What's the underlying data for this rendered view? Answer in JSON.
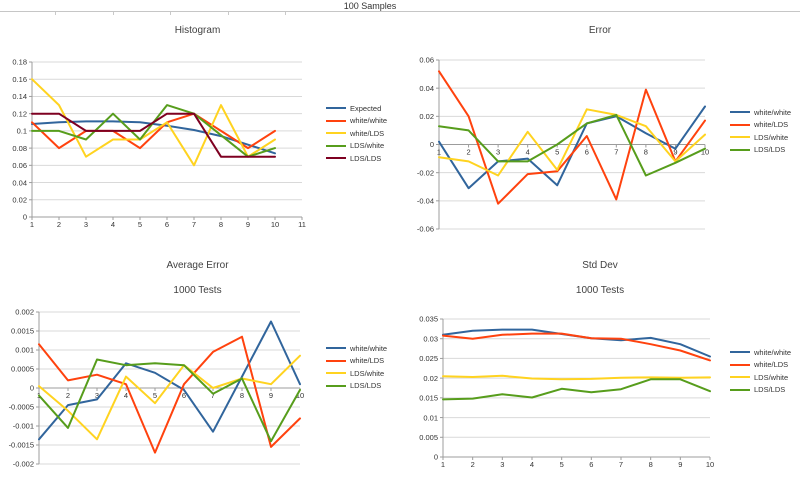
{
  "header": {
    "title": "100 Samples"
  },
  "palette": {
    "blue": "#31659C",
    "orange": "#FF420E",
    "yellow": "#FFD320",
    "green": "#579D1C",
    "maroon": "#7E0021",
    "grid": "#D9D9D9",
    "axis": "#9C9C9C",
    "text": "#333333"
  },
  "chart_data": [
    {
      "type": "line",
      "title": "Histogram",
      "subtitle": "",
      "xticks": [
        "1",
        "2",
        "3",
        "4",
        "5",
        "6",
        "7",
        "8",
        "9",
        "10",
        "11"
      ],
      "ylim": [
        0,
        0.18
      ],
      "yticks": [
        "0.18",
        "0.16",
        "0.14",
        "0.12",
        "0.1",
        "0.08",
        "0.06",
        "0.04",
        "0.02",
        "0"
      ],
      "grid": true,
      "legend_position": "right",
      "series": [
        {
          "name": "Expected",
          "color": "blue",
          "values": [
            0.108,
            0.11,
            0.111,
            0.111,
            0.11,
            0.106,
            0.101,
            0.094,
            0.084,
            0.074
          ]
        },
        {
          "name": "white/white",
          "color": "orange",
          "values": [
            0.11,
            0.08,
            0.1,
            0.1,
            0.08,
            0.11,
            0.12,
            0.1,
            0.08,
            0.1
          ]
        },
        {
          "name": "white/LDS",
          "color": "yellow",
          "values": [
            0.16,
            0.13,
            0.07,
            0.09,
            0.09,
            0.11,
            0.06,
            0.13,
            0.07,
            0.09
          ]
        },
        {
          "name": "LDS/white",
          "color": "green",
          "values": [
            0.1,
            0.1,
            0.09,
            0.12,
            0.09,
            0.13,
            0.12,
            0.095,
            0.07,
            0.08
          ]
        },
        {
          "name": "LDS/LDS",
          "color": "maroon",
          "values": [
            0.12,
            0.12,
            0.1,
            0.1,
            0.1,
            0.12,
            0.12,
            0.07,
            0.07,
            0.07
          ]
        }
      ]
    },
    {
      "type": "line",
      "title": "Error",
      "subtitle": "",
      "xticks": [
        "1",
        "2",
        "3",
        "4",
        "5",
        "6",
        "7",
        "8",
        "9",
        "10"
      ],
      "ylim": [
        -0.06,
        0.06
      ],
      "yticks": [
        "0.06",
        "0.04",
        "0.02",
        "0",
        "-0.02",
        "-0.04",
        "-0.06"
      ],
      "grid": true,
      "legend_position": "right",
      "series": [
        {
          "name": "white/white",
          "color": "blue",
          "values": [
            0.002,
            -0.031,
            -0.012,
            -0.01,
            -0.029,
            0.015,
            0.02,
            0.008,
            -0.003,
            0.027
          ]
        },
        {
          "name": "white/LDS",
          "color": "orange",
          "values": [
            0.052,
            0.02,
            -0.042,
            -0.021,
            -0.019,
            0.006,
            -0.039,
            0.039,
            -0.012,
            0.017
          ]
        },
        {
          "name": "LDS/white",
          "color": "yellow",
          "values": [
            -0.009,
            -0.012,
            -0.022,
            0.009,
            -0.018,
            0.025,
            0.021,
            0.013,
            -0.012,
            0.007
          ]
        },
        {
          "name": "LDS/LDS",
          "color": "green",
          "values": [
            0.013,
            0.01,
            -0.012,
            -0.012,
            0.0,
            0.015,
            0.021,
            -0.022,
            -0.013,
            -0.003
          ]
        }
      ]
    },
    {
      "type": "line",
      "title": "Average Error",
      "subtitle": "1000 Tests",
      "xticks": [
        "1",
        "2",
        "3",
        "4",
        "5",
        "6",
        "7",
        "8",
        "9",
        "10"
      ],
      "ylim": [
        -0.002,
        0.002
      ],
      "yticks": [
        "0.002",
        "0.0015",
        "0.001",
        "0.0005",
        "0",
        "-0.0005",
        "-0.001",
        "-0.0015",
        "-0.002"
      ],
      "grid": true,
      "legend_position": "right",
      "series": [
        {
          "name": "white/white",
          "color": "blue",
          "values": [
            -0.00135,
            -0.00045,
            -0.0003,
            0.00065,
            0.0004,
            -5e-05,
            -0.00115,
            0.0003,
            0.00175,
            0.0001
          ]
        },
        {
          "name": "white/LDS",
          "color": "orange",
          "values": [
            0.00115,
            0.0002,
            0.00035,
            0.0001,
            -0.0017,
            0.0001,
            0.00095,
            0.00135,
            -0.00155,
            -0.0008
          ]
        },
        {
          "name": "LDS/white",
          "color": "yellow",
          "values": [
            5e-05,
            -0.0006,
            -0.00135,
            0.0003,
            -0.0004,
            0.0006,
            0.0,
            0.00025,
            0.0001,
            0.00085
          ]
        },
        {
          "name": "LDS/LDS",
          "color": "green",
          "values": [
            -0.0002,
            -0.00105,
            0.00075,
            0.0006,
            0.00065,
            0.0006,
            -0.00015,
            0.00025,
            -0.0014,
            -5e-05
          ]
        }
      ]
    },
    {
      "type": "line",
      "title": "Std Dev",
      "subtitle": "1000 Tests",
      "xticks": [
        "1",
        "2",
        "3",
        "4",
        "5",
        "6",
        "7",
        "8",
        "9",
        "10"
      ],
      "ylim": [
        0,
        0.035
      ],
      "yticks": [
        "0.035",
        "0.03",
        "0.025",
        "0.02",
        "0.015",
        "0.01",
        "0.005",
        "0"
      ],
      "grid": true,
      "legend_position": "right",
      "series": [
        {
          "name": "white/white",
          "color": "blue",
          "values": [
            0.031,
            0.032,
            0.0323,
            0.0323,
            0.0312,
            0.0301,
            0.0296,
            0.0302,
            0.0286,
            0.0255
          ]
        },
        {
          "name": "white/LDS",
          "color": "orange",
          "values": [
            0.0308,
            0.03,
            0.031,
            0.0313,
            0.0313,
            0.0301,
            0.03,
            0.0286,
            0.027,
            0.0245
          ]
        },
        {
          "name": "LDS/white",
          "color": "yellow",
          "values": [
            0.0205,
            0.0203,
            0.0206,
            0.0199,
            0.0197,
            0.0198,
            0.0201,
            0.0202,
            0.0201,
            0.0202
          ]
        },
        {
          "name": "LDS/LDS",
          "color": "green",
          "values": [
            0.0146,
            0.0148,
            0.0159,
            0.0151,
            0.0173,
            0.0164,
            0.0172,
            0.0197,
            0.0197,
            0.0167
          ]
        }
      ]
    }
  ]
}
